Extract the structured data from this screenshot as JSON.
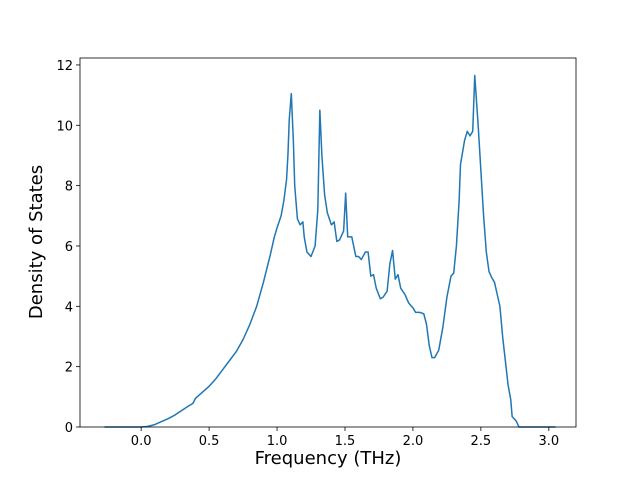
{
  "chart_data": {
    "type": "line",
    "xlabel": "Frequency (THz)",
    "ylabel": "Density of States",
    "color": "#1f77b4",
    "x": [
      -0.27,
      0.0,
      0.05,
      0.1,
      0.15,
      0.2,
      0.25,
      0.3,
      0.35,
      0.38,
      0.4,
      0.45,
      0.5,
      0.55,
      0.6,
      0.65,
      0.7,
      0.75,
      0.8,
      0.85,
      0.9,
      0.95,
      0.98,
      1.0,
      1.03,
      1.05,
      1.07,
      1.08,
      1.09,
      1.105,
      1.12,
      1.13,
      1.15,
      1.17,
      1.19,
      1.2,
      1.22,
      1.25,
      1.28,
      1.3,
      1.315,
      1.33,
      1.35,
      1.37,
      1.4,
      1.42,
      1.44,
      1.46,
      1.49,
      1.505,
      1.52,
      1.55,
      1.58,
      1.6,
      1.62,
      1.65,
      1.67,
      1.69,
      1.71,
      1.73,
      1.76,
      1.78,
      1.81,
      1.83,
      1.85,
      1.87,
      1.89,
      1.91,
      1.94,
      1.97,
      2.0,
      2.02,
      2.05,
      2.08,
      2.1,
      2.12,
      2.14,
      2.16,
      2.19,
      2.22,
      2.25,
      2.28,
      2.3,
      2.32,
      2.34,
      2.35,
      2.38,
      2.4,
      2.42,
      2.44,
      2.455,
      2.48,
      2.5,
      2.52,
      2.54,
      2.56,
      2.58,
      2.6,
      2.62,
      2.64,
      2.66,
      2.68,
      2.7,
      2.72,
      2.73,
      2.76,
      2.78,
      3.05
    ],
    "values": [
      0,
      0,
      0.02,
      0.08,
      0.18,
      0.28,
      0.4,
      0.55,
      0.7,
      0.78,
      0.95,
      1.15,
      1.35,
      1.6,
      1.9,
      2.2,
      2.5,
      2.9,
      3.4,
      4.0,
      4.8,
      5.7,
      6.3,
      6.6,
      7.0,
      7.5,
      8.2,
      9.0,
      10.2,
      11.05,
      9.5,
      8.0,
      6.9,
      6.7,
      6.8,
      6.3,
      5.8,
      5.65,
      6.0,
      7.2,
      10.5,
      9.0,
      7.7,
      7.1,
      6.7,
      6.8,
      6.15,
      6.2,
      6.5,
      7.75,
      6.3,
      6.3,
      5.65,
      5.65,
      5.55,
      5.8,
      5.8,
      5.0,
      5.05,
      4.6,
      4.25,
      4.3,
      4.5,
      5.4,
      5.85,
      4.9,
      5.05,
      4.6,
      4.4,
      4.1,
      3.95,
      3.8,
      3.8,
      3.75,
      3.4,
      2.7,
      2.3,
      2.3,
      2.55,
      3.3,
      4.3,
      5.0,
      5.1,
      6.0,
      7.5,
      8.7,
      9.5,
      9.8,
      9.65,
      9.8,
      11.65,
      10.0,
      8.5,
      7.0,
      5.8,
      5.15,
      4.95,
      4.8,
      4.4,
      4.0,
      3.0,
      2.2,
      1.4,
      0.9,
      0.35,
      0.2,
      0,
      0
    ],
    "xlim": [
      -0.45,
      3.2
    ],
    "ylim": [
      0,
      12.23
    ],
    "xticks": [
      {
        "value": 0,
        "label": "0.0"
      },
      {
        "value": 0.5,
        "label": "0.5"
      },
      {
        "value": 1,
        "label": "1.0"
      },
      {
        "value": 1.5,
        "label": "1.5"
      },
      {
        "value": 2,
        "label": "2.0"
      },
      {
        "value": 2.5,
        "label": "2.5"
      },
      {
        "value": 3,
        "label": "3.0"
      }
    ],
    "yticks": [
      0,
      2,
      4,
      6,
      8,
      10,
      12
    ]
  }
}
